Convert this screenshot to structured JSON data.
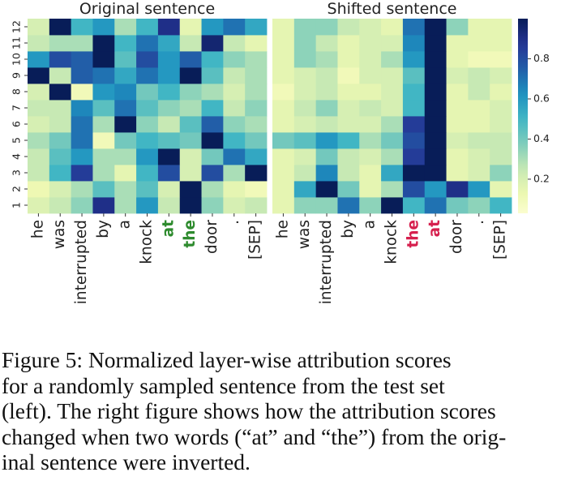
{
  "chart_data": [
    {
      "type": "heatmap",
      "title": "Original sentence",
      "x_tick_labels": [
        "he",
        "was",
        "interrupted",
        "by",
        "a",
        "knock",
        "at",
        "the",
        "door",
        ".",
        "[SEP]"
      ],
      "highlighted_ticks": {
        "indices": [
          6,
          7
        ],
        "color": "#2e8b2e"
      },
      "y_tick_labels": [
        "1",
        "2",
        "3",
        "4",
        "5",
        "6",
        "7",
        "8",
        "9",
        "10",
        "11",
        "12"
      ],
      "rows_layer_1_to_12": [
        [
          0.18,
          0.25,
          0.35,
          0.9,
          0.3,
          0.6,
          0.25,
          1.0,
          0.35,
          0.2,
          0.25
        ],
        [
          0.12,
          0.2,
          0.3,
          0.45,
          0.3,
          0.45,
          0.2,
          1.0,
          0.3,
          0.15,
          0.1
        ],
        [
          0.25,
          0.5,
          0.85,
          0.3,
          0.15,
          0.5,
          0.8,
          0.2,
          0.8,
          0.3,
          1.0
        ],
        [
          0.25,
          0.45,
          0.6,
          0.3,
          0.3,
          0.6,
          1.0,
          0.2,
          0.4,
          0.7,
          0.55
        ],
        [
          0.3,
          0.4,
          0.7,
          0.1,
          0.4,
          0.5,
          0.45,
          0.4,
          1.0,
          0.5,
          0.4
        ],
        [
          0.2,
          0.25,
          0.7,
          0.3,
          1.0,
          0.35,
          0.25,
          0.45,
          0.75,
          0.35,
          0.3
        ],
        [
          0.25,
          0.25,
          0.65,
          0.45,
          0.7,
          0.45,
          0.35,
          0.3,
          0.5,
          0.25,
          0.35
        ],
        [
          0.2,
          1.0,
          0.1,
          0.6,
          0.65,
          0.4,
          0.5,
          0.35,
          0.3,
          0.2,
          0.3
        ],
        [
          1.0,
          0.25,
          0.75,
          0.7,
          0.55,
          0.7,
          0.6,
          1.0,
          0.45,
          0.25,
          0.3
        ],
        [
          0.6,
          0.8,
          0.75,
          1.0,
          0.45,
          0.8,
          0.6,
          0.75,
          0.5,
          0.35,
          0.3
        ],
        [
          0.25,
          0.3,
          0.3,
          1.0,
          0.5,
          0.7,
          0.55,
          0.25,
          0.95,
          0.25,
          0.15
        ],
        [
          0.2,
          1.0,
          0.5,
          0.6,
          0.3,
          0.5,
          0.9,
          0.15,
          0.6,
          0.7,
          0.55
        ]
      ],
      "vmin": 0,
      "vmax": 1
    },
    {
      "type": "heatmap",
      "title": "Shifted sentence",
      "x_tick_labels": [
        "he",
        "was",
        "interrupted",
        "by",
        "a",
        "knock",
        "the",
        "at",
        "door",
        ".",
        "[SEP]"
      ],
      "highlighted_ticks": {
        "indices": [
          6,
          7
        ],
        "color": "#d6204e"
      },
      "y_tick_labels": [
        "1",
        "2",
        "3",
        "4",
        "5",
        "6",
        "7",
        "8",
        "9",
        "10",
        "11",
        "12"
      ],
      "rows_layer_1_to_12": [
        [
          0.15,
          0.35,
          0.35,
          0.7,
          0.35,
          1.0,
          0.5,
          0.7,
          0.4,
          0.35,
          0.5
        ],
        [
          0.15,
          0.55,
          1.0,
          0.4,
          0.15,
          0.3,
          0.8,
          0.6,
          0.9,
          0.6,
          0.15
        ],
        [
          0.15,
          0.25,
          0.65,
          0.25,
          0.15,
          0.55,
          1.0,
          1.0,
          0.15,
          0.2,
          0.35
        ],
        [
          0.15,
          0.2,
          0.4,
          0.25,
          0.2,
          0.3,
          0.85,
          1.0,
          0.15,
          0.2,
          0.25
        ],
        [
          0.4,
          0.45,
          0.6,
          0.5,
          0.3,
          0.4,
          0.8,
          1.0,
          0.2,
          0.25,
          0.25
        ],
        [
          0.15,
          0.2,
          0.25,
          0.2,
          0.2,
          0.3,
          0.85,
          1.0,
          0.15,
          0.15,
          0.2
        ],
        [
          0.15,
          0.25,
          0.35,
          0.2,
          0.25,
          0.2,
          0.5,
          1.0,
          0.15,
          0.15,
          0.2
        ],
        [
          0.1,
          0.2,
          0.25,
          0.15,
          0.15,
          0.2,
          0.5,
          1.0,
          0.15,
          0.25,
          0.15
        ],
        [
          0.15,
          0.2,
          0.25,
          0.1,
          0.2,
          0.2,
          0.45,
          1.0,
          0.2,
          0.25,
          0.2
        ],
        [
          0.15,
          0.35,
          0.3,
          0.15,
          0.2,
          0.3,
          0.6,
          1.0,
          0.15,
          0.1,
          0.1
        ],
        [
          0.15,
          0.35,
          0.25,
          0.15,
          0.2,
          0.2,
          0.65,
          1.0,
          0.15,
          0.15,
          0.15
        ],
        [
          0.15,
          0.35,
          0.35,
          0.25,
          0.2,
          0.15,
          0.7,
          1.0,
          0.35,
          0.15,
          0.15
        ]
      ],
      "vmin": 0,
      "vmax": 1
    }
  ],
  "colorbar": {
    "colormap": "YlGnBu",
    "ticks": [
      0.2,
      0.4,
      0.6,
      0.8
    ],
    "tick_labels": [
      "0.2",
      "0.4",
      "0.6",
      "0.8"
    ],
    "range": [
      0.03,
      1.0
    ]
  },
  "caption": {
    "lines": [
      "Figure 5:  Normalized layer-wise attribution scores",
      "for a randomly sampled sentence from the test set",
      "(left). The right figure shows how the attribution scores",
      "changed when two words (“at” and “the”) from the orig-",
      "inal sentence were inverted."
    ]
  }
}
